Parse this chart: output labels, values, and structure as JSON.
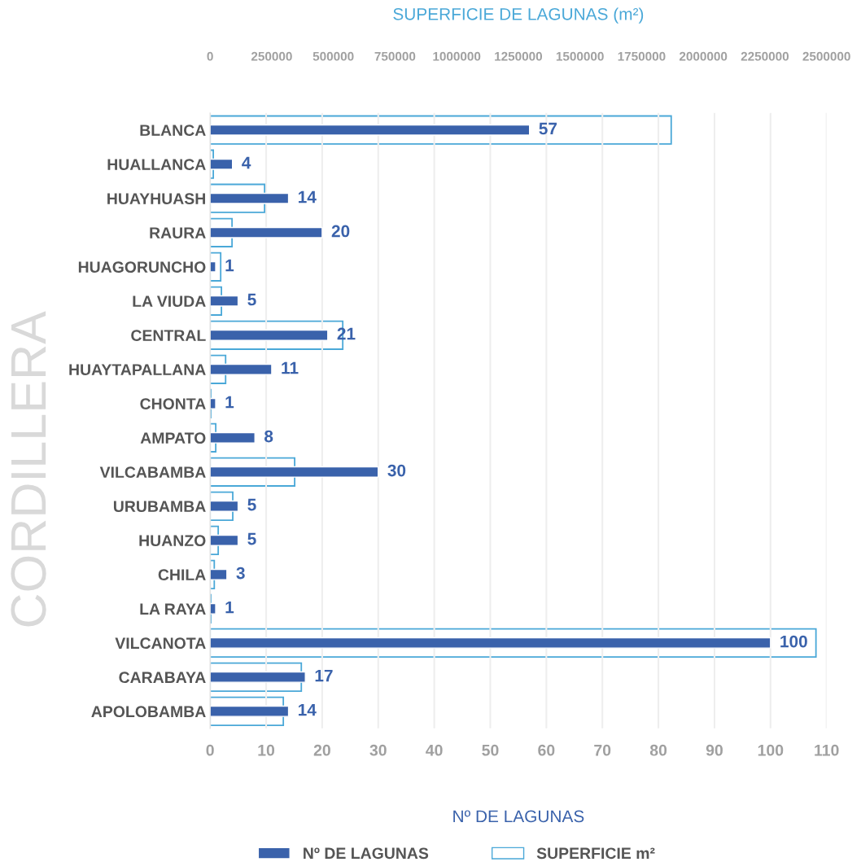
{
  "chart_data": {
    "type": "bar",
    "orientation": "horizontal",
    "x2label": "SUPERFICIE DE LAGUNAS (m²)",
    "xlabel": "Nº DE LAGUNAS",
    "ylabel": "CORDILLERA",
    "categories": [
      "BLANCA",
      "HUALLANCA",
      "HUAYHUASH",
      "RAURA",
      "HUAGORUNCHO",
      "LA VIUDA",
      "CENTRAL",
      "HUAYTAPALLANA",
      "CHONTA",
      "AMPATO",
      "VILCABAMBA",
      "URUBAMBA",
      "HUANZO",
      "CHILA",
      "LA RAYA",
      "VILCANOTA",
      "CARABAYA",
      "APOLOBAMBA"
    ],
    "series": [
      {
        "name": "SUPERFICIE m²",
        "axis": "x2",
        "color": "#4aa8d8",
        "values": [
          1870000,
          13000,
          221000,
          89000,
          43000,
          46000,
          538000,
          63000,
          3000,
          23000,
          343000,
          92000,
          33000,
          17000,
          3000,
          2457000,
          370000,
          297000
        ]
      },
      {
        "name": "Nº DE LAGUNAS",
        "color": "#3a62ab",
        "values": [
          57,
          4,
          14,
          20,
          1,
          5,
          21,
          11,
          1,
          8,
          30,
          5,
          5,
          3,
          1,
          100,
          17,
          14
        ],
        "value_labels": [
          "57",
          "4",
          "14",
          "20",
          "1",
          "5",
          "21",
          "11",
          "1",
          "8",
          "30",
          "5",
          "5",
          "3",
          "1",
          "100",
          "17",
          "14"
        ]
      }
    ],
    "xlim": [
      0,
      110
    ],
    "xticks": [
      0,
      10,
      20,
      30,
      40,
      50,
      60,
      70,
      80,
      90,
      100,
      110
    ],
    "x2lim": [
      0,
      2500000
    ],
    "x2ticks": [
      0,
      250000,
      500000,
      750000,
      1000000,
      1250000,
      1500000,
      1750000,
      2000000,
      2250000,
      2500000
    ],
    "grid": "x",
    "legend": "bottom"
  }
}
